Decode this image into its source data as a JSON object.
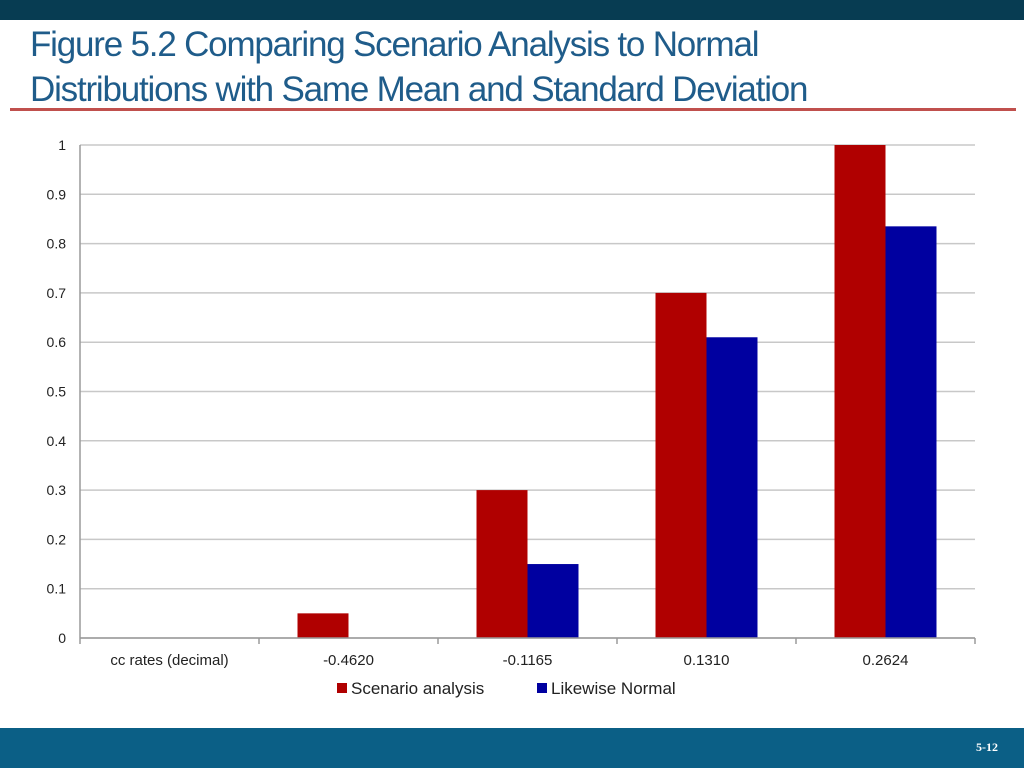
{
  "slide": {
    "title_line1": "Figure 5.2 Comparing Scenario Analysis to Normal",
    "title_line2": "Distributions with Same Mean and Standard Deviation",
    "page_number": "5-12"
  },
  "colors": {
    "scenario": "#b00000",
    "normal": "#0000a0",
    "grid": "#c8c8c8",
    "title": "#1f5c8a",
    "rule": "#c0504d"
  },
  "chart_data": {
    "type": "bar",
    "categories": [
      "cc rates (decimal)",
      "-0.4620",
      "-0.1165",
      "0.1310",
      "0.2624"
    ],
    "series": [
      {
        "name": "Scenario analysis",
        "values": [
          0,
          0.05,
          0.3,
          0.7,
          1.0
        ]
      },
      {
        "name": "Likewise Normal",
        "values": [
          0,
          0.0,
          0.15,
          0.61,
          0.835
        ]
      }
    ],
    "ylim": [
      0,
      1
    ],
    "yticks": [
      0,
      0.1,
      0.2,
      0.3,
      0.4,
      0.5,
      0.6,
      0.7,
      0.8,
      0.9,
      1
    ],
    "grid": true,
    "legend_position": "bottom"
  }
}
